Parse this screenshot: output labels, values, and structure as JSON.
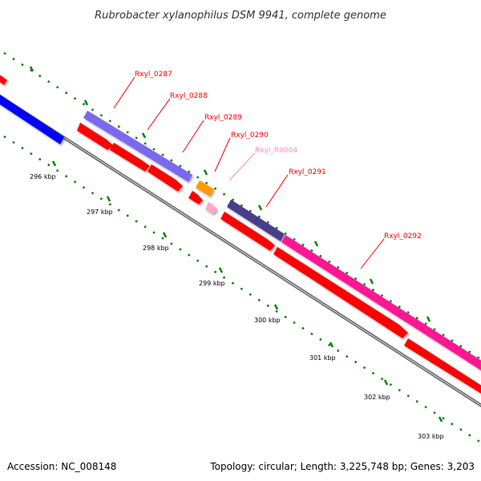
{
  "title": "Rubrobacter xylanophilus DSM 9941, complete genome",
  "accession": "Accession: NC_008148",
  "topology": "Topology: circular; Length: 3,225,748 bp; Genes: 3,203",
  "scale_labels": [
    "296 kbp",
    "297 kbp",
    "298 kbp",
    "299 kbp",
    "300 kbp",
    "301 kbp",
    "302 kbp",
    "303 kbp"
  ],
  "genes": [
    {
      "id": "Rxyl_0287",
      "color": "#ff0000"
    },
    {
      "id": "Rxyl_0288",
      "color": "#ff0000"
    },
    {
      "id": "Rxyl_0289",
      "color": "#ff0000"
    },
    {
      "id": "Rxyl_0290",
      "color": "#ff0000"
    },
    {
      "id": "Rxyl_R0004",
      "color": "#ff88cc"
    },
    {
      "id": "Rxyl_0291",
      "color": "#ff0000"
    },
    {
      "id": "Rxyl_0292",
      "color": "#ff0000"
    }
  ],
  "colors": {
    "cds": "#ff0000",
    "gene_blue": "#0000ff",
    "cog_lavender": "#7b68ee",
    "cog_navy": "#483d8b",
    "cog_magenta": "#ff1493",
    "cog_orange": "#ff9900",
    "rna_pink": "#ff99cc",
    "backbone": "#888888",
    "ticks": "#008000"
  }
}
